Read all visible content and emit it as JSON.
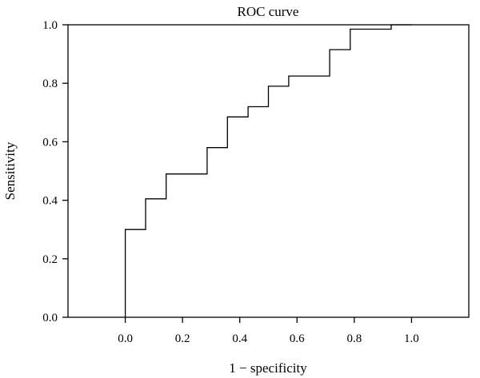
{
  "chart_data": {
    "type": "line",
    "title": "ROC curve",
    "xlabel": "1 − specificity",
    "ylabel": "Sensitivity",
    "xlim": [
      -0.2,
      1.2
    ],
    "ylim": [
      0,
      1
    ],
    "x_ticks": [
      "0.0",
      "0.2",
      "0.4",
      "0.6",
      "0.8",
      "1.0"
    ],
    "y_ticks": [
      "0.0",
      "0.2",
      "0.4",
      "0.6",
      "0.8",
      "1.0"
    ],
    "grid": false,
    "series": [
      {
        "step": true,
        "points": [
          [
            0.0,
            0.0
          ],
          [
            0.0,
            0.3
          ],
          [
            0.071,
            0.3
          ],
          [
            0.071,
            0.405
          ],
          [
            0.143,
            0.405
          ],
          [
            0.143,
            0.49
          ],
          [
            0.286,
            0.49
          ],
          [
            0.286,
            0.58
          ],
          [
            0.357,
            0.58
          ],
          [
            0.357,
            0.685
          ],
          [
            0.429,
            0.685
          ],
          [
            0.429,
            0.72
          ],
          [
            0.5,
            0.72
          ],
          [
            0.5,
            0.79
          ],
          [
            0.571,
            0.79
          ],
          [
            0.571,
            0.825
          ],
          [
            0.714,
            0.825
          ],
          [
            0.714,
            0.915
          ],
          [
            0.786,
            0.915
          ],
          [
            0.786,
            0.985
          ],
          [
            0.929,
            0.985
          ],
          [
            0.929,
            1.0
          ],
          [
            1.0,
            1.0
          ]
        ]
      }
    ]
  }
}
